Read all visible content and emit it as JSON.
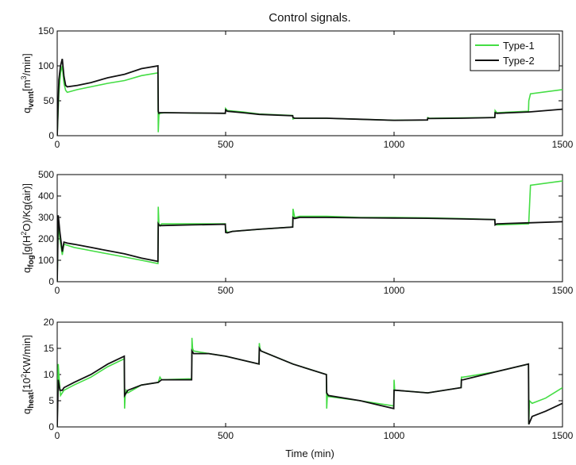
{
  "figure": {
    "title": "Control signals.",
    "xlabel": "Time (min)"
  },
  "chart_data": [
    {
      "type": "line",
      "ylabel_main": "q",
      "ylabel_sub": "vent",
      "ylabel_unit_prefix": "[m",
      "ylabel_unit_sup": "3",
      "ylabel_unit_suffix": "/min]",
      "xlim": [
        0,
        1500
      ],
      "ylim": [
        0,
        150
      ],
      "xticks": [
        "0",
        "500",
        "1000",
        "1500"
      ],
      "yticks": [
        "0",
        "50",
        "100",
        "150"
      ],
      "legend": {
        "placement": "top-right",
        "entries": [
          "Type-1",
          "Type-2"
        ]
      },
      "series": [
        {
          "name": "Type-1",
          "color": "#44dd44",
          "x": [
            0,
            5,
            10,
            15,
            20,
            25,
            30,
            60,
            100,
            150,
            200,
            250,
            299,
            300,
            302,
            305,
            320,
            400,
            499,
            500,
            505,
            550,
            600,
            699,
            700,
            705,
            800,
            900,
            1000,
            1099,
            1100,
            1105,
            1200,
            1299,
            1300,
            1305,
            1399,
            1400,
            1405,
            1500
          ],
          "y": [
            0,
            60,
            90,
            100,
            75,
            65,
            62,
            66,
            70,
            75,
            79,
            86,
            90,
            5,
            30,
            32,
            33,
            32.5,
            32,
            39,
            36,
            34,
            31,
            29,
            24,
            25,
            25,
            23.5,
            22,
            22.5,
            26,
            25,
            25.5,
            26,
            36,
            33,
            35,
            50,
            60,
            66
          ]
        },
        {
          "name": "Type-2",
          "color": "#111111",
          "x": [
            0,
            5,
            10,
            15,
            20,
            25,
            30,
            60,
            100,
            150,
            200,
            250,
            299,
            300,
            302,
            305,
            320,
            400,
            499,
            500,
            505,
            550,
            600,
            699,
            700,
            705,
            800,
            900,
            1000,
            1099,
            1100,
            1105,
            1200,
            1299,
            1300,
            1305,
            1399,
            1400,
            1500
          ],
          "y": [
            0,
            80,
            100,
            110,
            85,
            72,
            70,
            72,
            76,
            83,
            88,
            96,
            100,
            35,
            32,
            33,
            33,
            32.5,
            32,
            37,
            35,
            33,
            30.5,
            28.5,
            26,
            25,
            25,
            23.5,
            22,
            22.5,
            25,
            24.5,
            25,
            26,
            33,
            32,
            34,
            34,
            38
          ]
        }
      ]
    },
    {
      "type": "line",
      "ylabel_main": "q",
      "ylabel_sub": "fog",
      "ylabel_unit_prefix": "[g(H",
      "ylabel_unit_sup": "2",
      "ylabel_unit_suffix": "O)/Kg(air)]",
      "xlim": [
        0,
        1500
      ],
      "ylim": [
        0,
        500
      ],
      "xticks": [
        "0",
        "500",
        "1000",
        "1500"
      ],
      "yticks": [
        "0",
        "100",
        "200",
        "300",
        "400",
        "500"
      ],
      "series": [
        {
          "name": "Type-1",
          "color": "#44dd44",
          "x": [
            0,
            3,
            8,
            15,
            20,
            30,
            50,
            100,
            150,
            200,
            250,
            299,
            300,
            302,
            305,
            310,
            400,
            499,
            500,
            505,
            520,
            600,
            699,
            700,
            705,
            720,
            800,
            900,
            1000,
            1100,
            1200,
            1299,
            1300,
            1305,
            1399,
            1400,
            1405,
            1500
          ],
          "y": [
            0,
            280,
            200,
            125,
            175,
            170,
            160,
            145,
            130,
            115,
            100,
            85,
            350,
            270,
            260,
            270,
            270,
            270,
            245,
            230,
            235,
            245,
            255,
            340,
            300,
            305,
            305,
            300,
            300,
            298,
            295,
            290,
            270,
            265,
            270,
            280,
            450,
            470
          ]
        },
        {
          "name": "Type-2",
          "color": "#111111",
          "x": [
            0,
            3,
            8,
            15,
            20,
            30,
            50,
            100,
            150,
            200,
            250,
            299,
            300,
            302,
            305,
            400,
            499,
            500,
            505,
            520,
            600,
            699,
            700,
            705,
            720,
            800,
            900,
            1000,
            1100,
            1200,
            1299,
            1300,
            1305,
            1399,
            1400,
            1500
          ],
          "y": [
            0,
            310,
            230,
            140,
            185,
            180,
            175,
            160,
            145,
            130,
            110,
            95,
            270,
            265,
            262,
            265,
            268,
            230,
            228,
            235,
            245,
            255,
            300,
            295,
            300,
            300,
            298,
            297,
            296,
            293,
            290,
            265,
            270,
            275,
            275,
            280
          ]
        }
      ]
    },
    {
      "type": "line",
      "ylabel_main": "q",
      "ylabel_sub": "heat",
      "ylabel_unit_prefix": "[10",
      "ylabel_unit_sup": "2",
      "ylabel_unit_suffix": "KW/min]",
      "xlim": [
        0,
        1500
      ],
      "ylim": [
        0,
        20
      ],
      "xticks": [
        "0",
        "500",
        "1000",
        "1500"
      ],
      "yticks": [
        "0",
        "5",
        "10",
        "15",
        "20"
      ],
      "series": [
        {
          "name": "Type-1",
          "color": "#44dd44",
          "x": [
            0,
            3,
            6,
            10,
            15,
            20,
            50,
            100,
            150,
            199,
            200,
            202,
            205,
            210,
            250,
            300,
            305,
            310,
            399,
            400,
            402,
            405,
            450,
            500,
            599,
            600,
            602,
            605,
            700,
            799,
            800,
            802,
            805,
            900,
            999,
            1000,
            1002,
            1005,
            1100,
            1199,
            1200,
            1205,
            1300,
            1399,
            1400,
            1402,
            1410,
            1450,
            1500
          ],
          "y": [
            0,
            12,
            9,
            6,
            6.5,
            7,
            8,
            9.5,
            11.5,
            13,
            3.5,
            6,
            7,
            6.5,
            8,
            8.5,
            9.5,
            9,
            9.2,
            17,
            15,
            14.5,
            14,
            13.5,
            12,
            16,
            15,
            14.5,
            12,
            10,
            3.5,
            6,
            5.8,
            5,
            4,
            9,
            7,
            7,
            6.5,
            7.5,
            9.5,
            9.5,
            10.5,
            12,
            0.5,
            5,
            4.5,
            5.5,
            7.5
          ]
        },
        {
          "name": "Type-2",
          "color": "#111111",
          "x": [
            0,
            3,
            8,
            15,
            20,
            50,
            100,
            150,
            199,
            200,
            205,
            210,
            250,
            300,
            310,
            399,
            400,
            405,
            450,
            500,
            599,
            600,
            605,
            700,
            799,
            800,
            805,
            900,
            999,
            1000,
            1005,
            1100,
            1199,
            1200,
            1205,
            1300,
            1399,
            1400,
            1410,
            1450,
            1500
          ],
          "y": [
            0,
            9,
            7,
            7,
            7.5,
            8.5,
            10,
            12,
            13.5,
            6,
            6.5,
            7,
            8,
            8.5,
            9,
            9,
            14.5,
            14,
            14,
            13.5,
            12,
            15,
            14.5,
            12,
            10,
            6.5,
            6,
            5,
            3.5,
            7,
            7,
            6.5,
            7.5,
            9,
            9,
            10.5,
            12,
            0.5,
            2,
            3,
            4.5
          ]
        }
      ]
    }
  ]
}
